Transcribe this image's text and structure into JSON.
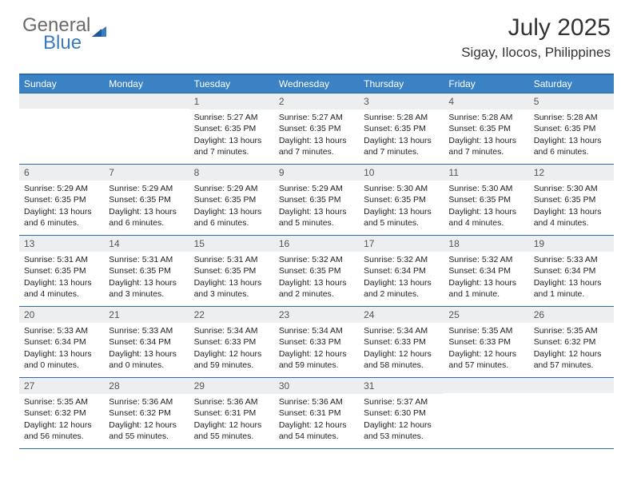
{
  "logo": {
    "part1": "General",
    "part2": "Blue"
  },
  "title": "July 2025",
  "location": "Sigay, Ilocos, Philippines",
  "colors": {
    "header_bar": "#3b82c4",
    "rule": "#2d6aa8",
    "daynum_bg": "#eceef0",
    "text": "#222222",
    "logo_gray": "#6a6a6a",
    "logo_blue": "#3a7abf"
  },
  "weekdays": [
    "Sunday",
    "Monday",
    "Tuesday",
    "Wednesday",
    "Thursday",
    "Friday",
    "Saturday"
  ],
  "weeks": [
    [
      {
        "num": "",
        "lines": []
      },
      {
        "num": "",
        "lines": []
      },
      {
        "num": "1",
        "lines": [
          "Sunrise: 5:27 AM",
          "Sunset: 6:35 PM",
          "Daylight: 13 hours",
          "and 7 minutes."
        ]
      },
      {
        "num": "2",
        "lines": [
          "Sunrise: 5:27 AM",
          "Sunset: 6:35 PM",
          "Daylight: 13 hours",
          "and 7 minutes."
        ]
      },
      {
        "num": "3",
        "lines": [
          "Sunrise: 5:28 AM",
          "Sunset: 6:35 PM",
          "Daylight: 13 hours",
          "and 7 minutes."
        ]
      },
      {
        "num": "4",
        "lines": [
          "Sunrise: 5:28 AM",
          "Sunset: 6:35 PM",
          "Daylight: 13 hours",
          "and 7 minutes."
        ]
      },
      {
        "num": "5",
        "lines": [
          "Sunrise: 5:28 AM",
          "Sunset: 6:35 PM",
          "Daylight: 13 hours",
          "and 6 minutes."
        ]
      }
    ],
    [
      {
        "num": "6",
        "lines": [
          "Sunrise: 5:29 AM",
          "Sunset: 6:35 PM",
          "Daylight: 13 hours",
          "and 6 minutes."
        ]
      },
      {
        "num": "7",
        "lines": [
          "Sunrise: 5:29 AM",
          "Sunset: 6:35 PM",
          "Daylight: 13 hours",
          "and 6 minutes."
        ]
      },
      {
        "num": "8",
        "lines": [
          "Sunrise: 5:29 AM",
          "Sunset: 6:35 PM",
          "Daylight: 13 hours",
          "and 6 minutes."
        ]
      },
      {
        "num": "9",
        "lines": [
          "Sunrise: 5:29 AM",
          "Sunset: 6:35 PM",
          "Daylight: 13 hours",
          "and 5 minutes."
        ]
      },
      {
        "num": "10",
        "lines": [
          "Sunrise: 5:30 AM",
          "Sunset: 6:35 PM",
          "Daylight: 13 hours",
          "and 5 minutes."
        ]
      },
      {
        "num": "11",
        "lines": [
          "Sunrise: 5:30 AM",
          "Sunset: 6:35 PM",
          "Daylight: 13 hours",
          "and 4 minutes."
        ]
      },
      {
        "num": "12",
        "lines": [
          "Sunrise: 5:30 AM",
          "Sunset: 6:35 PM",
          "Daylight: 13 hours",
          "and 4 minutes."
        ]
      }
    ],
    [
      {
        "num": "13",
        "lines": [
          "Sunrise: 5:31 AM",
          "Sunset: 6:35 PM",
          "Daylight: 13 hours",
          "and 4 minutes."
        ]
      },
      {
        "num": "14",
        "lines": [
          "Sunrise: 5:31 AM",
          "Sunset: 6:35 PM",
          "Daylight: 13 hours",
          "and 3 minutes."
        ]
      },
      {
        "num": "15",
        "lines": [
          "Sunrise: 5:31 AM",
          "Sunset: 6:35 PM",
          "Daylight: 13 hours",
          "and 3 minutes."
        ]
      },
      {
        "num": "16",
        "lines": [
          "Sunrise: 5:32 AM",
          "Sunset: 6:35 PM",
          "Daylight: 13 hours",
          "and 2 minutes."
        ]
      },
      {
        "num": "17",
        "lines": [
          "Sunrise: 5:32 AM",
          "Sunset: 6:34 PM",
          "Daylight: 13 hours",
          "and 2 minutes."
        ]
      },
      {
        "num": "18",
        "lines": [
          "Sunrise: 5:32 AM",
          "Sunset: 6:34 PM",
          "Daylight: 13 hours",
          "and 1 minute."
        ]
      },
      {
        "num": "19",
        "lines": [
          "Sunrise: 5:33 AM",
          "Sunset: 6:34 PM",
          "Daylight: 13 hours",
          "and 1 minute."
        ]
      }
    ],
    [
      {
        "num": "20",
        "lines": [
          "Sunrise: 5:33 AM",
          "Sunset: 6:34 PM",
          "Daylight: 13 hours",
          "and 0 minutes."
        ]
      },
      {
        "num": "21",
        "lines": [
          "Sunrise: 5:33 AM",
          "Sunset: 6:34 PM",
          "Daylight: 13 hours",
          "and 0 minutes."
        ]
      },
      {
        "num": "22",
        "lines": [
          "Sunrise: 5:34 AM",
          "Sunset: 6:33 PM",
          "Daylight: 12 hours",
          "and 59 minutes."
        ]
      },
      {
        "num": "23",
        "lines": [
          "Sunrise: 5:34 AM",
          "Sunset: 6:33 PM",
          "Daylight: 12 hours",
          "and 59 minutes."
        ]
      },
      {
        "num": "24",
        "lines": [
          "Sunrise: 5:34 AM",
          "Sunset: 6:33 PM",
          "Daylight: 12 hours",
          "and 58 minutes."
        ]
      },
      {
        "num": "25",
        "lines": [
          "Sunrise: 5:35 AM",
          "Sunset: 6:33 PM",
          "Daylight: 12 hours",
          "and 57 minutes."
        ]
      },
      {
        "num": "26",
        "lines": [
          "Sunrise: 5:35 AM",
          "Sunset: 6:32 PM",
          "Daylight: 12 hours",
          "and 57 minutes."
        ]
      }
    ],
    [
      {
        "num": "27",
        "lines": [
          "Sunrise: 5:35 AM",
          "Sunset: 6:32 PM",
          "Daylight: 12 hours",
          "and 56 minutes."
        ]
      },
      {
        "num": "28",
        "lines": [
          "Sunrise: 5:36 AM",
          "Sunset: 6:32 PM",
          "Daylight: 12 hours",
          "and 55 minutes."
        ]
      },
      {
        "num": "29",
        "lines": [
          "Sunrise: 5:36 AM",
          "Sunset: 6:31 PM",
          "Daylight: 12 hours",
          "and 55 minutes."
        ]
      },
      {
        "num": "30",
        "lines": [
          "Sunrise: 5:36 AM",
          "Sunset: 6:31 PM",
          "Daylight: 12 hours",
          "and 54 minutes."
        ]
      },
      {
        "num": "31",
        "lines": [
          "Sunrise: 5:37 AM",
          "Sunset: 6:30 PM",
          "Daylight: 12 hours",
          "and 53 minutes."
        ]
      },
      {
        "num": "",
        "lines": []
      },
      {
        "num": "",
        "lines": []
      }
    ]
  ]
}
